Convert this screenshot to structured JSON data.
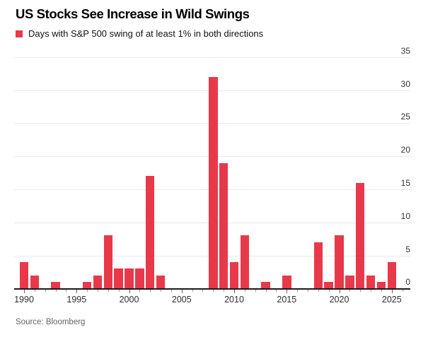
{
  "header": {
    "title": "US Stocks See Increase in Wild Swings"
  },
  "legend": {
    "label": "Days with S&P 500 swing of at least 1% in both directions",
    "swatch_color": "#e8394a"
  },
  "source": {
    "text": "Source: Bloomberg"
  },
  "colors": {
    "bar": "#e8394a",
    "gridline": "#e9e9e9",
    "axis_line": "#1a1a1a",
    "tick_major": "#666666",
    "tick_minor": "#9a9a9a"
  },
  "chart_data": {
    "type": "bar",
    "title": "US Stocks See Increase in Wild Swings",
    "series_name": "Days with S&P 500 swing of at least 1% in both directions",
    "x": [
      1990,
      1991,
      1992,
      1993,
      1994,
      1995,
      1996,
      1997,
      1998,
      1999,
      2000,
      2001,
      2002,
      2003,
      2004,
      2005,
      2006,
      2007,
      2008,
      2009,
      2010,
      2011,
      2012,
      2013,
      2014,
      2015,
      2016,
      2017,
      2018,
      2019,
      2020,
      2021,
      2022,
      2023,
      2024,
      2025
    ],
    "values": [
      4,
      2,
      0,
      1,
      0,
      0,
      1,
      2,
      8,
      3,
      3,
      3,
      17,
      2,
      0,
      0,
      0,
      0,
      32,
      19,
      4,
      8,
      0,
      1,
      0,
      2,
      0,
      0,
      7,
      1,
      8,
      2,
      16,
      2,
      1,
      4
    ],
    "xlabel": "",
    "ylabel": "",
    "ylim": [
      0,
      35
    ],
    "yticks": [
      0,
      5,
      10,
      15,
      20,
      25,
      30,
      35
    ],
    "xticks": [
      1990,
      1995,
      2000,
      2005,
      2010,
      2015,
      2020,
      2025
    ],
    "grid": true,
    "y_axis_side": "right",
    "legend_position": "top-left",
    "bar_color": "#e8394a"
  }
}
